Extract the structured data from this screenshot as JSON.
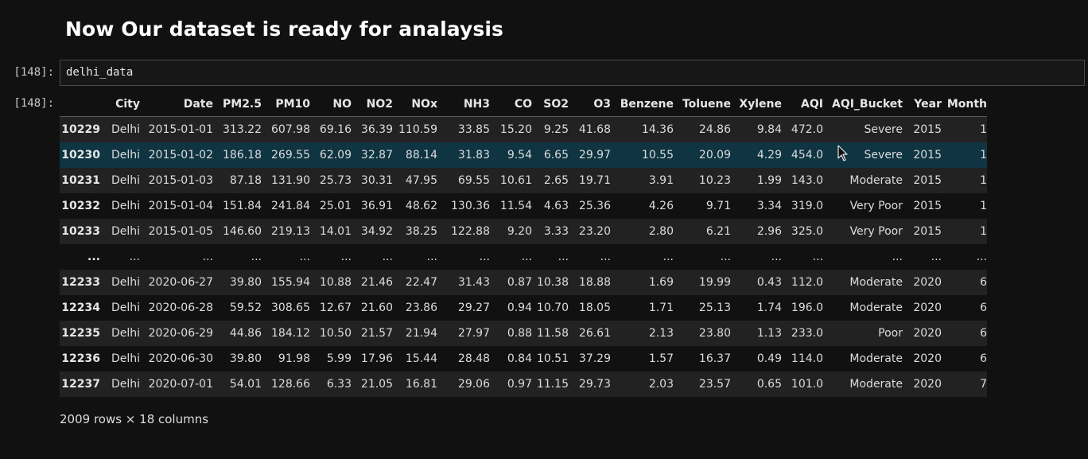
{
  "heading": "Now Our dataset is ready for analaysis",
  "input_prompt": "[148]:",
  "output_prompt": "[148]:",
  "code": "delhi_data",
  "table": {
    "columns": [
      "",
      "City",
      "Date",
      "PM2.5",
      "PM10",
      "NO",
      "NO2",
      "NOx",
      "NH3",
      "CO",
      "SO2",
      "O3",
      "Benzene",
      "Toluene",
      "Xylene",
      "AQI",
      "AQI_Bucket",
      "Year",
      "Month"
    ],
    "rows": [
      [
        "10229",
        "Delhi",
        "2015-01-01",
        "313.22",
        "607.98",
        "69.16",
        "36.39",
        "110.59",
        "33.85",
        "15.20",
        "9.25",
        "41.68",
        "14.36",
        "24.86",
        "9.84",
        "472.0",
        "Severe",
        "2015",
        "1"
      ],
      [
        "10230",
        "Delhi",
        "2015-01-02",
        "186.18",
        "269.55",
        "62.09",
        "32.87",
        "88.14",
        "31.83",
        "9.54",
        "6.65",
        "29.97",
        "10.55",
        "20.09",
        "4.29",
        "454.0",
        "Severe",
        "2015",
        "1"
      ],
      [
        "10231",
        "Delhi",
        "2015-01-03",
        "87.18",
        "131.90",
        "25.73",
        "30.31",
        "47.95",
        "69.55",
        "10.61",
        "2.65",
        "19.71",
        "3.91",
        "10.23",
        "1.99",
        "143.0",
        "Moderate",
        "2015",
        "1"
      ],
      [
        "10232",
        "Delhi",
        "2015-01-04",
        "151.84",
        "241.84",
        "25.01",
        "36.91",
        "48.62",
        "130.36",
        "11.54",
        "4.63",
        "25.36",
        "4.26",
        "9.71",
        "3.34",
        "319.0",
        "Very Poor",
        "2015",
        "1"
      ],
      [
        "10233",
        "Delhi",
        "2015-01-05",
        "146.60",
        "219.13",
        "14.01",
        "34.92",
        "38.25",
        "122.88",
        "9.20",
        "3.33",
        "23.20",
        "2.80",
        "6.21",
        "2.96",
        "325.0",
        "Very Poor",
        "2015",
        "1"
      ],
      [
        "...",
        "...",
        "...",
        "...",
        "...",
        "...",
        "...",
        "...",
        "...",
        "...",
        "...",
        "...",
        "...",
        "...",
        "...",
        "...",
        "...",
        "...",
        "..."
      ],
      [
        "12233",
        "Delhi",
        "2020-06-27",
        "39.80",
        "155.94",
        "10.88",
        "21.46",
        "22.47",
        "31.43",
        "0.87",
        "10.38",
        "18.88",
        "1.69",
        "19.99",
        "0.43",
        "112.0",
        "Moderate",
        "2020",
        "6"
      ],
      [
        "12234",
        "Delhi",
        "2020-06-28",
        "59.52",
        "308.65",
        "12.67",
        "21.60",
        "23.86",
        "29.27",
        "0.94",
        "10.70",
        "18.05",
        "1.71",
        "25.13",
        "1.74",
        "196.0",
        "Moderate",
        "2020",
        "6"
      ],
      [
        "12235",
        "Delhi",
        "2020-06-29",
        "44.86",
        "184.12",
        "10.50",
        "21.57",
        "21.94",
        "27.97",
        "0.88",
        "11.58",
        "26.61",
        "2.13",
        "23.80",
        "1.13",
        "233.0",
        "Poor",
        "2020",
        "6"
      ],
      [
        "12236",
        "Delhi",
        "2020-06-30",
        "39.80",
        "91.98",
        "5.99",
        "17.96",
        "15.44",
        "28.48",
        "0.84",
        "10.51",
        "37.29",
        "1.57",
        "16.37",
        "0.49",
        "114.0",
        "Moderate",
        "2020",
        "6"
      ],
      [
        "12237",
        "Delhi",
        "2020-07-01",
        "54.01",
        "128.66",
        "6.33",
        "21.05",
        "16.81",
        "29.06",
        "0.97",
        "11.15",
        "29.73",
        "2.03",
        "23.57",
        "0.65",
        "101.0",
        "Moderate",
        "2020",
        "7"
      ]
    ],
    "hover_row": 1
  },
  "shape_text": "2009 rows × 18 columns",
  "colors": {
    "background": "#111111",
    "stripe": "#222222",
    "hover_row": "#0f3442"
  },
  "icons": {
    "cursor": "mouse-pointer-icon"
  }
}
